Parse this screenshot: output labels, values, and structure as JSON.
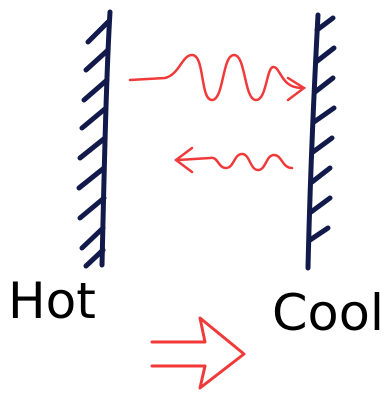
{
  "walls": [
    {
      "label": "Hot"
    },
    {
      "label": "Cool"
    }
  ]
}
